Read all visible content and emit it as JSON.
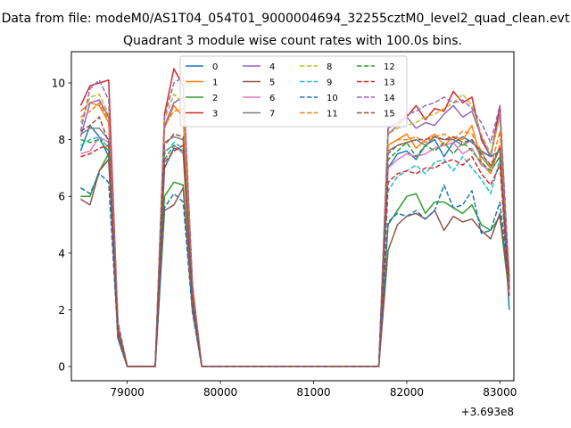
{
  "chart_data": {
    "type": "line",
    "suptitle": "Data from file: modeM0/AS1T04_054T01_9000004694_32255cztM0_level2_quad_clean.evt",
    "title": "Quadrant 3 module wise count rates with 100.0s bins.",
    "xlabel": "",
    "ylabel": "",
    "x_offset_label": "+3.693e8",
    "xlim": [
      78400,
      83150
    ],
    "ylim": [
      -0.5,
      11.1
    ],
    "xticks": [
      79000,
      80000,
      81000,
      82000,
      83000
    ],
    "yticks": [
      0,
      2,
      4,
      6,
      8,
      10
    ],
    "grid": false,
    "legend": {
      "placement": "upper-center",
      "columns": 4
    },
    "x": [
      78500,
      78600,
      78700,
      78800,
      78900,
      79000,
      79100,
      79200,
      79300,
      79400,
      79500,
      79600,
      79700,
      79800,
      81700,
      81800,
      81900,
      82000,
      82100,
      82200,
      82300,
      82400,
      82500,
      82600,
      82700,
      82800,
      82900,
      83000,
      83100
    ],
    "series": [
      {
        "name": "0",
        "color": "#1f77b4",
        "dash": false,
        "values": [
          7.6,
          8.5,
          8.1,
          7.4,
          1.0,
          0,
          0,
          0,
          0,
          7.0,
          7.7,
          7.6,
          2.3,
          0,
          0,
          7.0,
          7.5,
          7.6,
          7.3,
          7.8,
          8.0,
          7.4,
          7.9,
          8.1,
          7.9,
          7.6,
          7.4,
          7.6,
          2.0
        ]
      },
      {
        "name": "1",
        "color": "#ff7f0e",
        "dash": false,
        "values": [
          9.0,
          9.3,
          9.2,
          8.6,
          1.4,
          0,
          0,
          0,
          0,
          8.4,
          9.2,
          8.8,
          2.6,
          0,
          0,
          7.8,
          8.0,
          8.2,
          7.7,
          8.0,
          8.2,
          7.8,
          8.1,
          8.0,
          8.5,
          7.2,
          6.8,
          7.8,
          3.3
        ]
      },
      {
        "name": "2",
        "color": "#2ca02c",
        "dash": false,
        "values": [
          6.0,
          6.0,
          6.9,
          7.5,
          1.0,
          0,
          0,
          0,
          0,
          6.0,
          6.5,
          6.4,
          2.0,
          0,
          0,
          5.0,
          5.5,
          6.0,
          6.1,
          5.4,
          5.8,
          5.8,
          5.6,
          5.4,
          5.7,
          5.0,
          4.8,
          5.3,
          2.5
        ]
      },
      {
        "name": "3",
        "color": "#d62728",
        "dash": false,
        "values": [
          9.2,
          9.9,
          10.0,
          10.1,
          1.5,
          0,
          0,
          0,
          0,
          8.9,
          10.5,
          9.9,
          2.9,
          0,
          0,
          8.4,
          8.6,
          8.8,
          9.2,
          8.7,
          9.1,
          9.0,
          9.7,
          9.3,
          9.5,
          8.0,
          7.4,
          9.2,
          2.5
        ]
      },
      {
        "name": "4",
        "color": "#9467bd",
        "dash": false,
        "values": [
          8.1,
          9.3,
          9.4,
          8.8,
          1.4,
          0,
          0,
          0,
          0,
          8.5,
          9.3,
          9.5,
          2.7,
          0,
          0,
          8.2,
          8.5,
          8.8,
          8.4,
          8.6,
          8.5,
          8.9,
          9.2,
          8.8,
          9.0,
          8.1,
          7.4,
          8.9,
          2.8
        ]
      },
      {
        "name": "5",
        "color": "#8c564b",
        "dash": false,
        "values": [
          5.9,
          5.7,
          6.9,
          7.3,
          1.0,
          0,
          0,
          0,
          0,
          5.5,
          5.7,
          6.3,
          2.0,
          0,
          0,
          4.1,
          5.0,
          5.3,
          5.4,
          5.2,
          5.5,
          4.8,
          5.3,
          5.1,
          5.2,
          4.8,
          4.5,
          5.4,
          2.7
        ]
      },
      {
        "name": "6",
        "color": "#e377c2",
        "dash": false,
        "values": [
          7.5,
          7.6,
          8.1,
          7.9,
          1.2,
          0,
          0,
          0,
          0,
          7.6,
          7.8,
          7.5,
          2.3,
          0,
          0,
          7.0,
          7.3,
          7.5,
          7.4,
          7.5,
          7.7,
          7.8,
          7.9,
          7.5,
          7.7,
          7.1,
          6.9,
          7.4,
          2.6
        ]
      },
      {
        "name": "7",
        "color": "#7f7f7f",
        "dash": false,
        "values": [
          8.2,
          8.4,
          8.4,
          8.0,
          1.3,
          0,
          0,
          0,
          0,
          7.9,
          8.1,
          8.0,
          2.5,
          0,
          0,
          7.6,
          7.8,
          7.9,
          8.0,
          7.8,
          8.1,
          8.0,
          8.0,
          7.8,
          8.0,
          7.4,
          7.0,
          7.7,
          2.8
        ]
      },
      {
        "name": "8",
        "color": "#bcbd22",
        "dash": true,
        "values": [
          8.6,
          9.5,
          9.6,
          8.9,
          1.5,
          0,
          0,
          0,
          0,
          8.7,
          9.6,
          9.3,
          2.8,
          0,
          0,
          8.2,
          8.4,
          8.5,
          8.6,
          8.8,
          8.9,
          9.1,
          9.3,
          9.6,
          9.2,
          8.2,
          7.5,
          8.8,
          2.9
        ]
      },
      {
        "name": "9",
        "color": "#17becf",
        "dash": true,
        "values": [
          7.8,
          8.0,
          8.1,
          7.7,
          1.2,
          0,
          0,
          0,
          0,
          7.5,
          7.9,
          7.7,
          2.3,
          0,
          0,
          6.2,
          6.7,
          6.9,
          7.1,
          6.8,
          7.2,
          7.3,
          6.9,
          7.4,
          7.0,
          6.6,
          6.1,
          7.3,
          2.8
        ]
      },
      {
        "name": "10",
        "color": "#1f77b4",
        "dash": true,
        "values": [
          6.3,
          6.1,
          6.8,
          6.5,
          1.0,
          0,
          0,
          0,
          0,
          5.6,
          6.1,
          5.8,
          1.9,
          0,
          0,
          5.1,
          5.4,
          5.3,
          5.5,
          5.2,
          5.5,
          6.4,
          5.6,
          5.7,
          6.2,
          4.7,
          4.8,
          5.8,
          2.9
        ]
      },
      {
        "name": "11",
        "color": "#ff7f0e",
        "dash": true,
        "values": [
          8.8,
          9.0,
          9.3,
          8.7,
          1.4,
          0,
          0,
          0,
          0,
          8.5,
          9.0,
          9.1,
          2.7,
          0,
          0,
          7.8,
          8.0,
          8.0,
          8.1,
          7.9,
          8.1,
          8.2,
          8.0,
          8.3,
          8.2,
          7.6,
          7.0,
          8.3,
          3.1
        ]
      },
      {
        "name": "12",
        "color": "#2ca02c",
        "dash": true,
        "values": [
          8.0,
          7.9,
          8.0,
          7.6,
          1.3,
          0,
          0,
          0,
          0,
          7.3,
          7.8,
          7.6,
          2.3,
          0,
          0,
          7.3,
          7.6,
          7.9,
          7.4,
          7.8,
          7.6,
          7.9,
          7.5,
          7.9,
          7.6,
          7.2,
          6.9,
          7.4,
          2.9
        ]
      },
      {
        "name": "13",
        "color": "#d62728",
        "dash": true,
        "values": [
          7.4,
          7.5,
          7.7,
          7.8,
          1.2,
          0,
          0,
          0,
          0,
          7.2,
          7.6,
          7.8,
          2.3,
          0,
          0,
          6.5,
          6.8,
          6.9,
          6.8,
          7.0,
          7.0,
          7.2,
          7.3,
          7.1,
          7.4,
          6.8,
          6.4,
          7.1,
          2.7
        ]
      },
      {
        "name": "14",
        "color": "#9467bd",
        "dash": true,
        "values": [
          8.3,
          9.8,
          10.1,
          9.4,
          1.6,
          0,
          0,
          0,
          0,
          8.8,
          10.0,
          10.2,
          2.9,
          0,
          0,
          8.4,
          8.6,
          8.9,
          9.0,
          9.2,
          9.3,
          9.5,
          9.3,
          9.4,
          9.1,
          8.6,
          7.9,
          9.2,
          3.1
        ]
      },
      {
        "name": "15",
        "color": "#8c564b",
        "dash": true,
        "values": [
          8.3,
          8.5,
          8.8,
          7.9,
          1.3,
          0,
          0,
          0,
          0,
          7.8,
          8.2,
          8.1,
          2.5,
          0,
          0,
          7.5,
          7.8,
          7.9,
          8.0,
          8.0,
          8.1,
          8.0,
          8.1,
          7.9,
          8.0,
          7.5,
          7.1,
          7.7,
          3.0
        ]
      }
    ]
  }
}
